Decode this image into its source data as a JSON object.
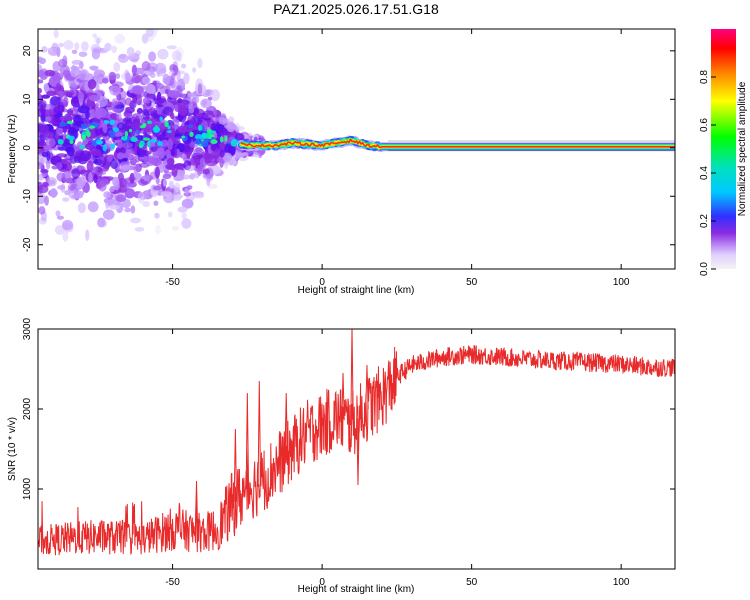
{
  "title": "PAZ1.2025.026.17.51.G18",
  "chart_data": [
    {
      "type": "heatmap",
      "xlabel": "Height of straight line (km)",
      "ylabel": "Frequency (Hz)",
      "xlim": [
        -95,
        118
      ],
      "ylim": [
        -25,
        24.5
      ],
      "xticks": [
        -50,
        0,
        50,
        100
      ],
      "yticks": [
        -20,
        -10,
        0,
        10,
        20
      ],
      "colorbar": {
        "label": "Normalized spectral amplitude",
        "range": [
          0,
          1
        ],
        "ticks": [
          "0.0",
          "0.2",
          "0.4",
          "0.6",
          "0.8"
        ]
      },
      "ridge": [
        {
          "x": -95,
          "f": 3.5,
          "spread": 10
        },
        {
          "x": -80,
          "f": 3.0,
          "spread": 10
        },
        {
          "x": -65,
          "f": 2.5,
          "spread": 9
        },
        {
          "x": -55,
          "f": 3.5,
          "spread": 9
        },
        {
          "x": -45,
          "f": 3.0,
          "spread": 8
        },
        {
          "x": -35,
          "f": 2.0,
          "spread": 4
        },
        {
          "x": -30,
          "f": 1.0,
          "spread": 2
        },
        {
          "x": -25,
          "f": 0.5,
          "spread": 1
        },
        {
          "x": -15,
          "f": 0.5,
          "spread": 0.8
        },
        {
          "x": -10,
          "f": 1.0,
          "spread": 0.8
        },
        {
          "x": 0,
          "f": 0.5,
          "spread": 0.6
        },
        {
          "x": 5,
          "f": 1.0,
          "spread": 0.6
        },
        {
          "x": 10,
          "f": 1.5,
          "spread": 0.6
        },
        {
          "x": 15,
          "f": 0.5,
          "spread": 0.5
        },
        {
          "x": 20,
          "f": 0.2,
          "spread": 0.3
        },
        {
          "x": 118,
          "f": 0.2,
          "spread": 0.3
        }
      ]
    },
    {
      "type": "line",
      "xlabel": "Height of straight line (km)",
      "ylabel": "SNR (10 * v/v)",
      "xlim": [
        -95,
        118
      ],
      "ylim": [
        0,
        3000
      ],
      "xticks": [
        -50,
        0,
        50,
        100
      ],
      "yticks": [
        1000,
        2000,
        3000
      ],
      "series": [
        {
          "color": "#e82a2a",
          "trend": [
            {
              "x": -95,
              "y": 350
            },
            {
              "x": -85,
              "y": 380
            },
            {
              "x": -75,
              "y": 400
            },
            {
              "x": -60,
              "y": 380
            },
            {
              "x": -50,
              "y": 500
            },
            {
              "x": -40,
              "y": 450
            },
            {
              "x": -35,
              "y": 500
            },
            {
              "x": -30,
              "y": 800
            },
            {
              "x": -25,
              "y": 1000
            },
            {
              "x": -20,
              "y": 1100
            },
            {
              "x": -10,
              "y": 1500
            },
            {
              "x": -5,
              "y": 1700
            },
            {
              "x": 0,
              "y": 1800
            },
            {
              "x": 5,
              "y": 1900
            },
            {
              "x": 10,
              "y": 1800
            },
            {
              "x": 15,
              "y": 2000
            },
            {
              "x": 20,
              "y": 2150
            },
            {
              "x": 25,
              "y": 2400
            },
            {
              "x": 30,
              "y": 2550
            },
            {
              "x": 40,
              "y": 2650
            },
            {
              "x": 50,
              "y": 2680
            },
            {
              "x": 60,
              "y": 2650
            },
            {
              "x": 70,
              "y": 2620
            },
            {
              "x": 80,
              "y": 2600
            },
            {
              "x": 90,
              "y": 2580
            },
            {
              "x": 100,
              "y": 2560
            },
            {
              "x": 110,
              "y": 2520
            },
            {
              "x": 118,
              "y": 2520
            }
          ],
          "spikes": [
            {
              "x": -42,
              "y": 1100
            },
            {
              "x": -29,
              "y": 1750
            },
            {
              "x": -25,
              "y": 2200
            },
            {
              "x": -21,
              "y": 2350
            },
            {
              "x": -12,
              "y": 2200
            },
            {
              "x": 7,
              "y": 2450
            },
            {
              "x": 10,
              "y": 3050
            },
            {
              "x": 12,
              "y": 1050
            },
            {
              "x": 15,
              "y": 2550
            }
          ]
        }
      ]
    }
  ]
}
